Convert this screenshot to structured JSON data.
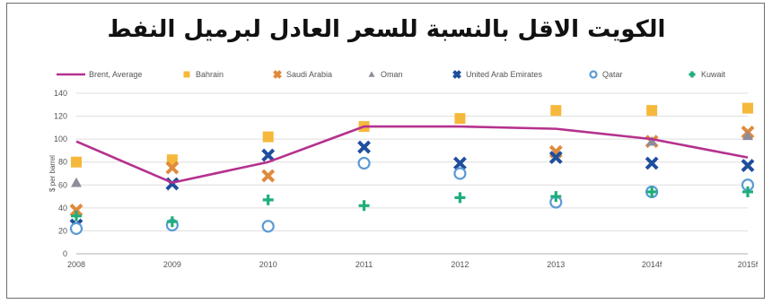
{
  "chart_data": {
    "type": "line",
    "title": "الكويت الاقل بالنسبة للسعر العادل لبرميل النفط",
    "ylabel": "$ per barrel",
    "xlabel": "",
    "categories": [
      "2008",
      "2009",
      "2010",
      "2011",
      "2012",
      "2013",
      "2014f",
      "2015f"
    ],
    "yticks": [
      "0",
      "20",
      "40",
      "60",
      "80",
      "100",
      "120",
      "140"
    ],
    "ylim": [
      0,
      140
    ],
    "grid": true,
    "legend_position": "top",
    "series": [
      {
        "name": "Brent, Average",
        "type": "line",
        "marker": "none",
        "color": "#b5318e",
        "values": [
          98,
          62,
          80,
          111,
          111,
          109,
          100,
          84
        ]
      },
      {
        "name": "Bahrain",
        "type": "scatter",
        "marker": "square",
        "color": "#f5b83a",
        "values": [
          80,
          82,
          102,
          111,
          118,
          125,
          125,
          127
        ]
      },
      {
        "name": "Saudi Arabia",
        "type": "scatter",
        "marker": "x",
        "color": "#e08a3c",
        "values": [
          38,
          75,
          68,
          null,
          null,
          89,
          98,
          106
        ]
      },
      {
        "name": "Oman",
        "type": "scatter",
        "marker": "triangle",
        "color": "#8c8c9c",
        "values": [
          62,
          null,
          null,
          null,
          null,
          null,
          98,
          103
        ]
      },
      {
        "name": "United Arab Emirates",
        "type": "scatter",
        "marker": "x",
        "color": "#1f4e9c",
        "values": [
          25,
          61,
          86,
          93,
          79,
          84,
          79,
          77
        ]
      },
      {
        "name": "Qatar",
        "type": "scatter",
        "marker": "circle",
        "color": "#5b9bd5",
        "values": [
          22,
          25,
          24,
          79,
          70,
          45,
          54,
          60
        ]
      },
      {
        "name": "Kuwait",
        "type": "scatter",
        "marker": "plus",
        "color": "#1fae7a",
        "values": [
          33,
          28,
          47,
          42,
          49,
          50,
          54,
          54
        ]
      }
    ]
  }
}
